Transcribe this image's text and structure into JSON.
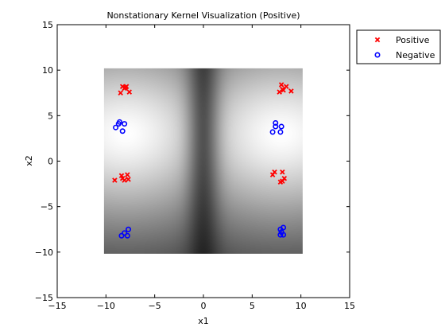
{
  "chart_data": {
    "type": "scatter",
    "title": "Nonstationary Kernel Visualization (Positive)",
    "xlabel": "x1",
    "ylabel": "x2",
    "xlim": [
      -15,
      15
    ],
    "ylim": [
      -15,
      15
    ],
    "xticks": [
      -15,
      -10,
      -5,
      0,
      5,
      10,
      15
    ],
    "yticks": [
      -15,
      -10,
      -5,
      0,
      5,
      10,
      15
    ],
    "xtick_labels": [
      "−15",
      "−10",
      "−5",
      "0",
      "5",
      "10",
      "15"
    ],
    "ytick_labels": [
      "−15",
      "−10",
      "−5",
      "0",
      "5",
      "10",
      "15"
    ],
    "legend_position": "outside top-right",
    "background_image": {
      "type": "heatmap",
      "colormap": "gray",
      "x_range": [
        -10.2,
        10.2
      ],
      "y_range": [
        -10.2,
        10.2
      ],
      "bright_centers": [
        [
          -8,
          3
        ],
        [
          8,
          3
        ]
      ]
    },
    "series": [
      {
        "name": "Positive",
        "marker": "x",
        "color": "#ff0000",
        "points": [
          [
            -8.3,
            8.2
          ],
          [
            -7.9,
            8.2
          ],
          [
            -8.1,
            8.0
          ],
          [
            -8.5,
            7.5
          ],
          [
            -7.6,
            7.6
          ],
          [
            -8.0,
            8.1
          ],
          [
            8.0,
            8.4
          ],
          [
            8.5,
            8.2
          ],
          [
            7.8,
            7.6
          ],
          [
            8.2,
            7.8
          ],
          [
            9.0,
            7.7
          ],
          [
            8.1,
            7.9
          ],
          [
            -9.1,
            -2.1
          ],
          [
            -8.4,
            -1.6
          ],
          [
            -7.8,
            -1.5
          ],
          [
            -8.1,
            -2.1
          ],
          [
            -7.7,
            -2.0
          ],
          [
            -8.3,
            -1.9
          ],
          [
            7.1,
            -1.5
          ],
          [
            7.3,
            -1.2
          ],
          [
            8.1,
            -1.2
          ],
          [
            8.3,
            -1.9
          ],
          [
            7.9,
            -2.3
          ],
          [
            8.1,
            -2.2
          ]
        ]
      },
      {
        "name": "Negative",
        "marker": "o",
        "color": "#0000ff",
        "points": [
          [
            -8.6,
            4.3
          ],
          [
            -9.0,
            3.7
          ],
          [
            -8.1,
            4.1
          ],
          [
            -8.3,
            3.3
          ],
          [
            -8.7,
            4.1
          ],
          [
            7.4,
            4.2
          ],
          [
            7.1,
            3.2
          ],
          [
            7.4,
            3.8
          ],
          [
            8.0,
            3.8
          ],
          [
            7.9,
            3.2
          ],
          [
            -8.4,
            -8.2
          ],
          [
            -8.1,
            -7.9
          ],
          [
            -7.7,
            -7.5
          ],
          [
            -7.8,
            -8.2
          ],
          [
            7.9,
            -7.5
          ],
          [
            8.2,
            -7.3
          ],
          [
            7.9,
            -8.1
          ],
          [
            8.2,
            -8.1
          ],
          [
            8.0,
            -7.8
          ]
        ]
      }
    ]
  }
}
